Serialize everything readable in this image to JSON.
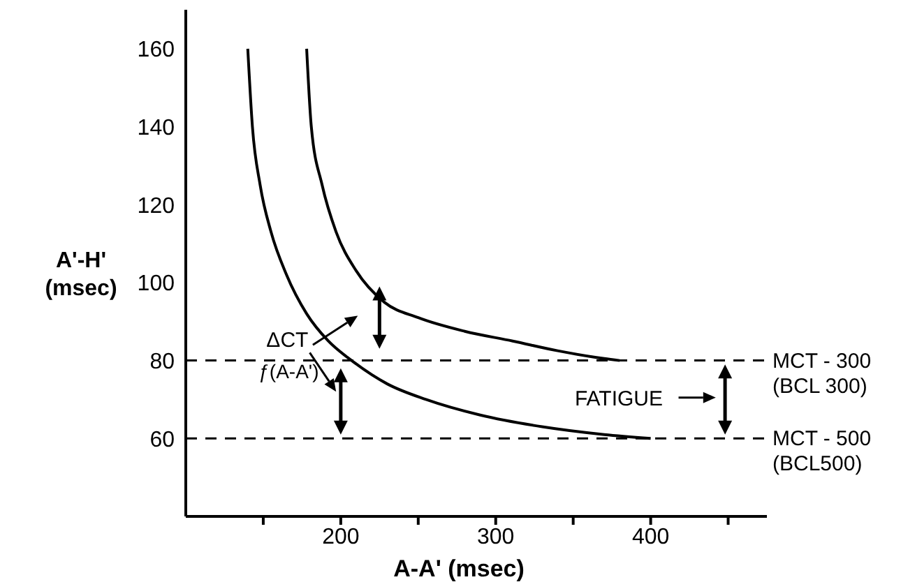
{
  "chart_data": {
    "type": "line",
    "xlabel": "A-A' (msec)",
    "ylabel": "A'-H'\n(msec)",
    "xlim": [
      100,
      475
    ],
    "xticks": [
      {
        "value": 150,
        "label": null
      },
      200,
      {
        "value": 250,
        "label": null
      },
      300,
      {
        "value": 350,
        "label": null
      },
      400,
      {
        "value": 450,
        "label": null
      }
    ],
    "ylim": [
      40,
      170
    ],
    "yticks": [
      60,
      80,
      100,
      120,
      140,
      160
    ],
    "series": [
      {
        "color": "#000000",
        "x": [
          140,
          143,
          148,
          155,
          165,
          178,
          192,
          207,
          230,
          255,
          290,
          330,
          370,
          400
        ],
        "values": [
          160,
          140,
          125,
          113,
          102,
          92,
          85,
          80,
          74,
          70,
          66,
          63,
          61,
          60
        ]
      },
      {
        "color": "#000000",
        "x": [
          178,
          181,
          188,
          197,
          210,
          228,
          250,
          280,
          311,
          340,
          370,
          380
        ],
        "values": [
          160,
          140,
          125,
          113,
          103,
          95,
          91,
          87.5,
          85,
          82.5,
          80.5,
          80
        ]
      }
    ],
    "ref_lines": [
      {
        "axis": "y",
        "value": 80,
        "label": "MCT - 300\n(BCL 300)",
        "line_style": "dashed",
        "color": "#000000"
      },
      {
        "axis": "y",
        "value": 60,
        "label": "MCT - 500\n(BCL500)",
        "line_style": "dashed",
        "color": "#000000"
      }
    ],
    "annotations": [
      "ΔCT",
      "ƒ(A-A')",
      "FATIGUE"
    ],
    "marker": "none",
    "line_style": "solid"
  }
}
